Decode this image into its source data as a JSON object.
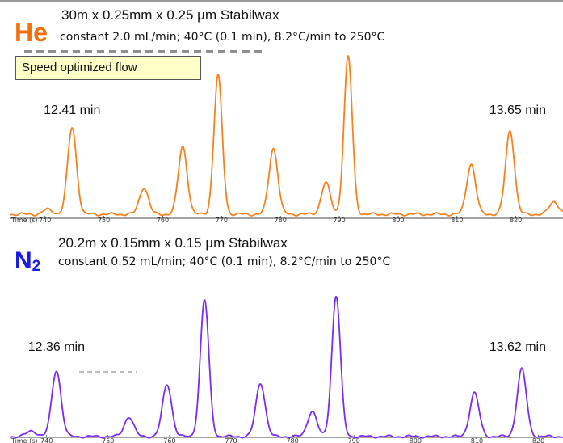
{
  "he": {
    "gas_label": "He",
    "column": "30m x 0.25mm x 0.25 µm Stabilwax",
    "conditions": "constant 2.0 mL/min;   40°C (0.1 min), 8.2°C/min to 250°C",
    "note": "Speed optimized flow"
  },
  "n2": {
    "gas_label": "N",
    "gas_sub": "2",
    "column": "20.2m x 0.15mm x 0.15 µm Stabilwax",
    "conditions": "constant 0.52 mL/min;   40°C (0.1 min), 8.2°C/min to 250°C"
  },
  "colors": {
    "he_trace": "#f5821f",
    "n2_trace": "#7a2cf0",
    "he_label": "#f26f0e",
    "n2_label": "#1a1ae6"
  },
  "chart_data": [
    {
      "type": "line",
      "name": "He chromatogram",
      "xlabel": "Time (s)",
      "xlim": [
        734,
        828
      ],
      "ticks": [
        740,
        750,
        760,
        770,
        780,
        790,
        800,
        810,
        820
      ],
      "annotations": [
        {
          "text": "12.41 min",
          "x": 744.6
        },
        {
          "text": "13.65 min",
          "x": 819.0
        }
      ],
      "peaks": [
        {
          "x": 740.5,
          "h": 0.03,
          "w": 0.8
        },
        {
          "x": 744.6,
          "h": 0.55,
          "w": 0.75
        },
        {
          "x": 756.8,
          "h": 0.17,
          "w": 0.75
        },
        {
          "x": 763.4,
          "h": 0.43,
          "w": 0.75
        },
        {
          "x": 769.4,
          "h": 0.88,
          "w": 0.7
        },
        {
          "x": 778.8,
          "h": 0.42,
          "w": 0.75
        },
        {
          "x": 787.7,
          "h": 0.2,
          "w": 0.75
        },
        {
          "x": 791.5,
          "h": 1.0,
          "w": 0.7
        },
        {
          "x": 812.4,
          "h": 0.32,
          "w": 0.75
        },
        {
          "x": 819.0,
          "h": 0.53,
          "w": 0.75
        },
        {
          "x": 826.5,
          "h": 0.08,
          "w": 0.8
        }
      ]
    },
    {
      "type": "line",
      "name": "N2 chromatogram",
      "xlabel": "Time (s)",
      "xlim": [
        734,
        824
      ],
      "ticks": [
        740,
        750,
        760,
        770,
        780,
        790,
        800,
        810,
        820
      ],
      "annotations": [
        {
          "text": "12.36 min",
          "x": 741.6
        },
        {
          "text": "13.62 min",
          "x": 817.3
        }
      ],
      "peaks": [
        {
          "x": 737.6,
          "h": 0.04,
          "w": 0.8
        },
        {
          "x": 741.6,
          "h": 0.47,
          "w": 0.75
        },
        {
          "x": 753.4,
          "h": 0.14,
          "w": 0.75
        },
        {
          "x": 759.6,
          "h": 0.37,
          "w": 0.75
        },
        {
          "x": 765.7,
          "h": 0.97,
          "w": 0.7
        },
        {
          "x": 774.8,
          "h": 0.38,
          "w": 0.75
        },
        {
          "x": 783.2,
          "h": 0.18,
          "w": 0.75
        },
        {
          "x": 787.1,
          "h": 1.0,
          "w": 0.7
        },
        {
          "x": 809.6,
          "h": 0.31,
          "w": 0.75
        },
        {
          "x": 817.3,
          "h": 0.48,
          "w": 0.75
        }
      ]
    }
  ]
}
